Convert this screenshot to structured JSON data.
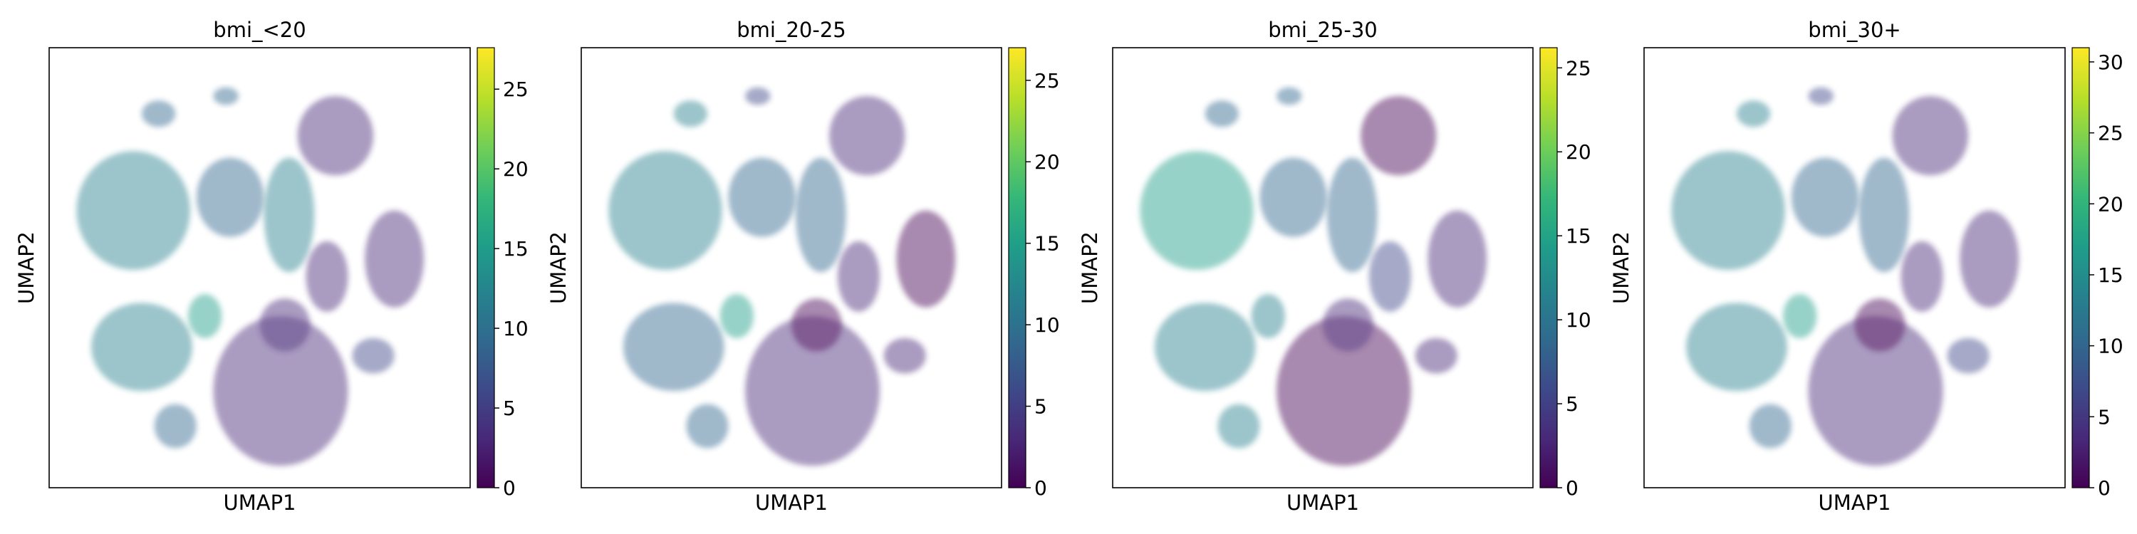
{
  "chart_data": [
    {
      "type": "scatter",
      "title": "bmi_<20",
      "xlabel": "UMAP1",
      "ylabel": "UMAP2",
      "colorbar": {
        "colormap": "viridis",
        "vmin": 0,
        "vmax": 27.6,
        "ticks": [
          0,
          5,
          10,
          15,
          20,
          25
        ]
      },
      "grid": false,
      "legend": "none"
    },
    {
      "type": "scatter",
      "title": "bmi_20-25",
      "xlabel": "UMAP1",
      "ylabel": "UMAP2",
      "colorbar": {
        "colormap": "viridis",
        "vmin": 0,
        "vmax": 27,
        "ticks": [
          0,
          5,
          10,
          15,
          20,
          25
        ]
      },
      "grid": false,
      "legend": "none"
    },
    {
      "type": "scatter",
      "title": "bmi_25-30",
      "xlabel": "UMAP1",
      "ylabel": "UMAP2",
      "colorbar": {
        "colormap": "viridis",
        "vmin": 0,
        "vmax": 26.2,
        "ticks": [
          0,
          5,
          10,
          15,
          20,
          25
        ]
      },
      "grid": false,
      "legend": "none"
    },
    {
      "type": "scatter",
      "title": "bmi_30+",
      "xlabel": "UMAP1",
      "ylabel": "UMAP2",
      "colorbar": {
        "colormap": "viridis",
        "vmin": 0,
        "vmax": 31,
        "ticks": [
          0,
          5,
          10,
          15,
          20,
          25,
          30
        ]
      },
      "grid": false,
      "legend": "none"
    }
  ],
  "colors": {
    "viridis": [
      "#440154",
      "#482878",
      "#3e4989",
      "#31688e",
      "#26828e",
      "#1f9e89",
      "#35b779",
      "#6ece58",
      "#b5de2b",
      "#fde725"
    ]
  }
}
